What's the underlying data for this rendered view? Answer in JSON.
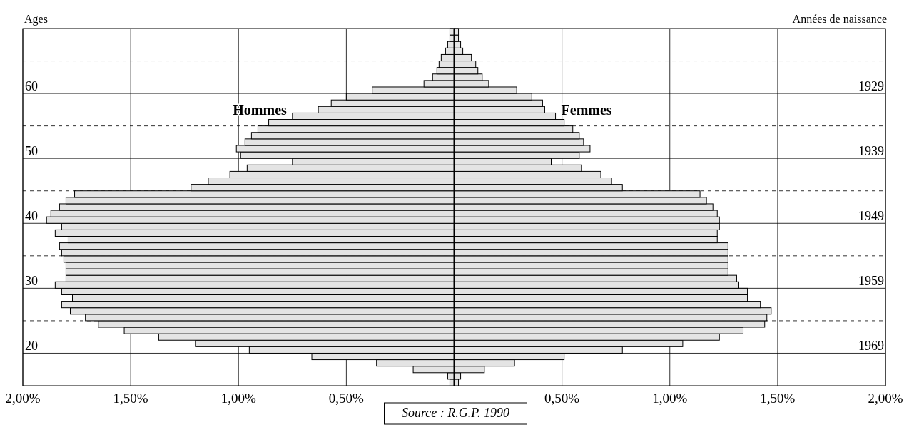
{
  "chart_data": {
    "type": "bar",
    "orientation": "horizontal",
    "ylabel": "Ages",
    "y2label": "Années de naissance",
    "x": [
      15.5,
      16.5,
      17.5,
      18.5,
      19.5,
      20.5,
      21.5,
      22.5,
      23.5,
      24.5,
      25.5,
      26.5,
      27.5,
      28.5,
      29.5,
      30.5,
      31.5,
      32.5,
      33.5,
      34.5,
      35.5,
      36.5,
      37.5,
      38.5,
      39.5,
      40.5,
      41.5,
      42.5,
      43.5,
      44.5,
      45.5,
      46.5,
      47.5,
      48.5,
      49.5,
      50.5,
      51.5,
      52.5,
      53.5,
      54.5,
      55.5,
      56.5,
      57.5,
      58.5,
      59.5,
      60.5,
      61.5,
      62.5,
      63.5,
      64.5,
      65.5,
      66.5,
      67.5,
      68.5,
      69.5
    ],
    "series": [
      {
        "name": "Hommes",
        "color": "#e4e4e4",
        "values": [
          -0.02,
          -0.03,
          -0.19,
          -0.36,
          -0.66,
          -0.95,
          -1.2,
          -1.37,
          -1.53,
          -1.65,
          -1.71,
          -1.78,
          -1.82,
          -1.77,
          -1.82,
          -1.85,
          -1.8,
          -1.8,
          -1.8,
          -1.81,
          -1.82,
          -1.83,
          -1.79,
          -1.85,
          -1.82,
          -1.89,
          -1.87,
          -1.83,
          -1.8,
          -1.76,
          -1.22,
          -1.14,
          -1.04,
          -0.96,
          -0.75,
          -0.99,
          -1.01,
          -0.97,
          -0.94,
          -0.91,
          -0.86,
          -0.75,
          -0.63,
          -0.57,
          -0.5,
          -0.38,
          -0.14,
          -0.1,
          -0.08,
          -0.07,
          -0.06,
          -0.04,
          -0.03,
          -0.02,
          -0.02
        ]
      },
      {
        "name": "Femmes",
        "color": "#e4e4e4",
        "values": [
          0.02,
          0.03,
          0.14,
          0.28,
          0.51,
          0.78,
          1.06,
          1.23,
          1.34,
          1.44,
          1.45,
          1.47,
          1.42,
          1.36,
          1.36,
          1.32,
          1.31,
          1.27,
          1.27,
          1.27,
          1.27,
          1.27,
          1.22,
          1.22,
          1.23,
          1.23,
          1.22,
          1.2,
          1.17,
          1.14,
          0.78,
          0.73,
          0.68,
          0.59,
          0.45,
          0.58,
          0.63,
          0.6,
          0.58,
          0.55,
          0.51,
          0.47,
          0.42,
          0.41,
          0.36,
          0.29,
          0.16,
          0.13,
          0.11,
          0.1,
          0.08,
          0.04,
          0.03,
          0.02,
          0.02
        ]
      }
    ],
    "xlim": [
      -2,
      2
    ],
    "xticks": [
      {
        "value": -2,
        "label": "2,00%"
      },
      {
        "value": -1.5,
        "label": "1,50%"
      },
      {
        "value": -1,
        "label": "1,00%"
      },
      {
        "value": -0.5,
        "label": "0,50%"
      },
      {
        "value": 0,
        "label": null
      },
      {
        "value": 0.5,
        "label": "0,50%"
      },
      {
        "value": 1,
        "label": "1,00%"
      },
      {
        "value": 1.5,
        "label": "1,50%"
      },
      {
        "value": 2,
        "label": "2,00%"
      }
    ],
    "ylim": [
      15,
      70
    ],
    "yticks": [
      20,
      {
        "value": 25,
        "label": null
      },
      30,
      {
        "value": 35,
        "label": null
      },
      40,
      {
        "value": 45,
        "label": null
      },
      50,
      {
        "value": 55,
        "label": null
      },
      60,
      {
        "value": 65,
        "label": null
      }
    ],
    "y2lim": [
      1974,
      1919
    ],
    "y2ticks": [
      1969,
      1959,
      1949,
      1939,
      1929
    ],
    "grid": true,
    "stacked": true,
    "annotations": [
      "Source : R.G.P. 1990"
    ]
  }
}
